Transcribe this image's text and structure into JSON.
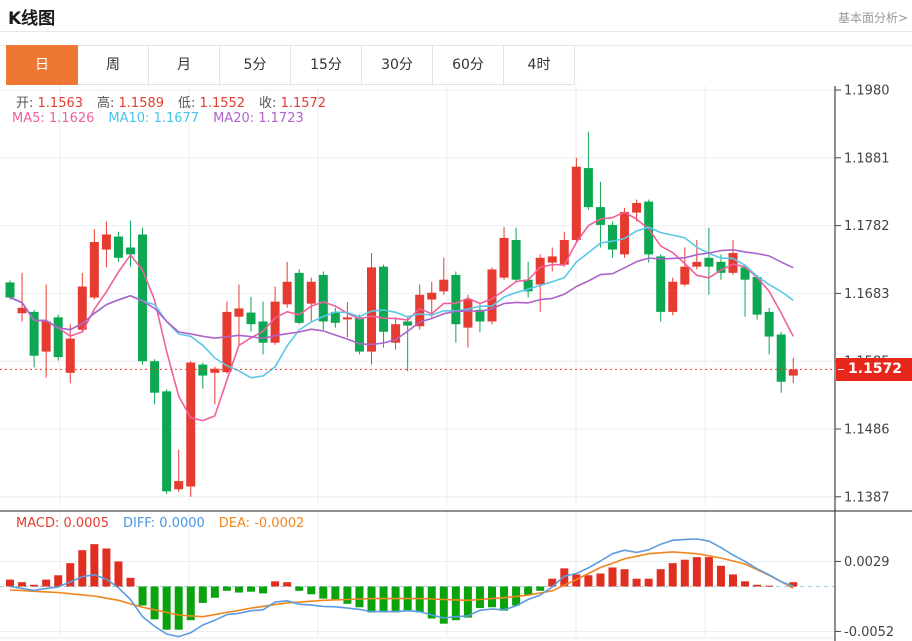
{
  "header": {
    "title": "K线图",
    "link": "基本面分析>"
  },
  "tabs": {
    "active_index": 0,
    "items": [
      "日",
      "周",
      "月",
      "5分",
      "15分",
      "30分",
      "60分",
      "4时"
    ]
  },
  "legend": {
    "ohlc": [
      {
        "label": "开:",
        "value": "1.1563"
      },
      {
        "label": "高:",
        "value": "1.1589"
      },
      {
        "label": "低:",
        "value": "1.1552"
      },
      {
        "label": "收:",
        "value": "1.1572"
      }
    ],
    "ma": [
      {
        "label": "MA5:",
        "value": "1.1626",
        "color": "#f0609e"
      },
      {
        "label": "MA10:",
        "value": "1.1677",
        "color": "#46c5e8"
      },
      {
        "label": "MA20:",
        "value": "1.1723",
        "color": "#b163c9"
      }
    ],
    "macd": [
      {
        "label": "MACD:",
        "value": "0.0005",
        "color": "#e63b30"
      },
      {
        "label": "DIFF:",
        "value": "0.0000",
        "color": "#4a95e0"
      },
      {
        "label": "DEA:",
        "value": "-0.0002",
        "color": "#f0861f"
      }
    ]
  },
  "price_axis": {
    "ticks": [
      "1.1980",
      "1.1881",
      "1.1782",
      "1.1683",
      "1.1585",
      "1.1486",
      "1.1387"
    ],
    "current": "1.1572"
  },
  "macd_axis": {
    "ticks": [
      "0.0029",
      "-0.0052"
    ]
  },
  "colors": {
    "up": "#e63b30",
    "down": "#0ca750",
    "macd_up": "#e02e20",
    "macd_down": "#0aa30e",
    "ma5": "#f0609e",
    "ma10": "#5ac8e6",
    "ma20": "#af63c9",
    "diff": "#5b9ce0",
    "dea": "#f0861f",
    "grid": "#e9eef5",
    "axis": "#444444",
    "zero_dash": "#9fd2e8",
    "current_line": "#ef3b30",
    "tag_bg": "#e8271c",
    "accent_tab": "#ee7734"
  },
  "chart_data": {
    "type": "candlestick",
    "title": "K线图 (日)",
    "xlabel": "",
    "ylabel": "",
    "y_axis": {
      "top_price": 1.198,
      "bottom_price": 1.1387,
      "step": 0.0099,
      "grid": true,
      "side": "right"
    },
    "current_price": 1.1572,
    "last_ohlc": {
      "open": 1.1563,
      "high": 1.1589,
      "low": 1.1552,
      "close": 1.1572
    },
    "ma_values": {
      "MA5": 1.1626,
      "MA10": 1.1677,
      "MA20": 1.1723
    },
    "candles_ohlc": [
      [
        1.1699,
        1.1702,
        1.1674,
        1.1677
      ],
      [
        1.1654,
        1.1713,
        1.1642,
        1.1662
      ],
      [
        1.1656,
        1.1659,
        1.1575,
        1.1592
      ],
      [
        1.1598,
        1.1696,
        1.156,
        1.1642
      ],
      [
        1.1648,
        1.1652,
        1.1585,
        1.159
      ],
      [
        1.1567,
        1.1638,
        1.1552,
        1.1617
      ],
      [
        1.163,
        1.1713,
        1.1627,
        1.1693
      ],
      [
        1.1677,
        1.1777,
        1.1674,
        1.1758
      ],
      [
        1.1747,
        1.1788,
        1.1721,
        1.1769
      ],
      [
        1.1766,
        1.1773,
        1.1729,
        1.1735
      ],
      [
        1.175,
        1.1789,
        1.1722,
        1.174
      ],
      [
        1.1769,
        1.1779,
        1.1579,
        1.1584
      ],
      [
        1.1584,
        1.1587,
        1.1521,
        1.1538
      ],
      [
        1.154,
        1.1543,
        1.139,
        1.1394
      ],
      [
        1.1397,
        1.1455,
        1.1393,
        1.1409
      ],
      [
        1.1401,
        1.1584,
        1.1386,
        1.1582
      ],
      [
        1.1579,
        1.1582,
        1.1544,
        1.1563
      ],
      [
        1.1567,
        1.1576,
        1.1521,
        1.1573
      ],
      [
        1.1568,
        1.1671,
        1.1566,
        1.1656
      ],
      [
        1.1649,
        1.1696,
        1.1608,
        1.1661
      ],
      [
        1.1655,
        1.1678,
        1.1627,
        1.1638
      ],
      [
        1.1642,
        1.1671,
        1.1594,
        1.1611
      ],
      [
        1.1611,
        1.1693,
        1.1608,
        1.1671
      ],
      [
        1.1667,
        1.1729,
        1.1662,
        1.17
      ],
      [
        1.1713,
        1.1718,
        1.1638,
        1.164
      ],
      [
        1.1668,
        1.1706,
        1.1642,
        1.17
      ],
      [
        1.171,
        1.1715,
        1.163,
        1.1642
      ],
      [
        1.1656,
        1.1662,
        1.1633,
        1.164
      ],
      [
        1.1645,
        1.167,
        1.1619,
        1.1648
      ],
      [
        1.1648,
        1.1652,
        1.1594,
        1.1598
      ],
      [
        1.1598,
        1.1742,
        1.1579,
        1.1721
      ],
      [
        1.1722,
        1.1725,
        1.1604,
        1.1627
      ],
      [
        1.1611,
        1.1648,
        1.1601,
        1.1638
      ],
      [
        1.1642,
        1.1648,
        1.1569,
        1.1636
      ],
      [
        1.1635,
        1.1696,
        1.163,
        1.1681
      ],
      [
        1.1674,
        1.17,
        1.1648,
        1.1684
      ],
      [
        1.1686,
        1.1735,
        1.1681,
        1.1703
      ],
      [
        1.171,
        1.1715,
        1.1611,
        1.1638
      ],
      [
        1.1633,
        1.1681,
        1.1604,
        1.1674
      ],
      [
        1.1659,
        1.1667,
        1.1626,
        1.1642
      ],
      [
        1.1642,
        1.1721,
        1.1638,
        1.1718
      ],
      [
        1.1706,
        1.178,
        1.1703,
        1.1764
      ],
      [
        1.1761,
        1.1779,
        1.1699,
        1.1703
      ],
      [
        1.1703,
        1.1729,
        1.1677,
        1.1686
      ],
      [
        1.1696,
        1.174,
        1.1656,
        1.1735
      ],
      [
        1.1728,
        1.175,
        1.1715,
        1.1737
      ],
      [
        1.1725,
        1.1773,
        1.1722,
        1.1761
      ],
      [
        1.1761,
        1.1881,
        1.1758,
        1.1868
      ],
      [
        1.1866,
        1.1919,
        1.1805,
        1.1809
      ],
      [
        1.1809,
        1.1846,
        1.175,
        1.1783
      ],
      [
        1.1783,
        1.1788,
        1.1735,
        1.1747
      ],
      [
        1.174,
        1.1808,
        1.1735,
        1.1802
      ],
      [
        1.1801,
        1.182,
        1.1788,
        1.1815
      ],
      [
        1.1817,
        1.182,
        1.1728,
        1.174
      ],
      [
        1.1737,
        1.174,
        1.1642,
        1.1656
      ],
      [
        1.1656,
        1.1706,
        1.1651,
        1.17
      ],
      [
        1.1696,
        1.175,
        1.1693,
        1.1722
      ],
      [
        1.1722,
        1.1761,
        1.1718,
        1.1729
      ],
      [
        1.1735,
        1.1779,
        1.1681,
        1.1722
      ],
      [
        1.1729,
        1.174,
        1.1703,
        1.1713
      ],
      [
        1.1713,
        1.1761,
        1.171,
        1.1742
      ],
      [
        1.1721,
        1.1725,
        1.1649,
        1.1703
      ],
      [
        1.1707,
        1.171,
        1.1645,
        1.1652
      ],
      [
        1.1656,
        1.1662,
        1.1594,
        1.162
      ],
      [
        1.1623,
        1.1627,
        1.1538,
        1.1554
      ],
      [
        1.1563,
        1.1589,
        1.1552,
        1.1572
      ]
    ],
    "ma_windows": [
      5,
      10,
      20
    ],
    "macd": {
      "readout": {
        "MACD": 0.0005,
        "DIFF": 0.0,
        "DEA": -0.0002
      },
      "y_ticks": [
        0.0029,
        -0.0052
      ],
      "histogram": [
        0.0008,
        0.0005,
        0.0002,
        0.0008,
        0.0013,
        0.0027,
        0.0042,
        0.0049,
        0.0044,
        0.0029,
        0.001,
        -0.0022,
        -0.0038,
        -0.005,
        -0.005,
        -0.0039,
        -0.0019,
        -0.0013,
        -0.0005,
        -0.0007,
        -0.0006,
        -0.0008,
        0.0006,
        0.0005,
        -0.0005,
        -0.0009,
        -0.0014,
        -0.0016,
        -0.002,
        -0.0024,
        -0.003,
        -0.003,
        -0.003,
        -0.0028,
        -0.003,
        -0.0037,
        -0.0043,
        -0.0039,
        -0.0036,
        -0.0025,
        -0.0024,
        -0.0028,
        -0.0022,
        -0.001,
        -0.0005,
        0.0009,
        0.0021,
        0.0014,
        0.0013,
        0.0015,
        0.0022,
        0.002,
        0.0009,
        0.0009,
        0.002,
        0.0027,
        0.0031,
        0.0034,
        0.0034,
        0.0024,
        0.0014,
        0.0006,
        0.0002,
        0.0001,
        0.0,
        0.0005
      ],
      "dea_points": [
        [
          0,
          -0.0004
        ],
        [
          4,
          -0.0007
        ],
        [
          7,
          -0.0011
        ],
        [
          9,
          -0.0016
        ],
        [
          11,
          -0.0024
        ],
        [
          14,
          -0.0033
        ],
        [
          16,
          -0.0035
        ],
        [
          18,
          -0.003
        ],
        [
          20,
          -0.0025
        ],
        [
          23,
          -0.0019
        ],
        [
          26,
          -0.0016
        ],
        [
          30,
          -0.0014
        ],
        [
          34,
          -0.0014
        ],
        [
          38,
          -0.0016
        ],
        [
          41,
          -0.0013
        ],
        [
          43,
          -0.001
        ],
        [
          45,
          -0.0005
        ],
        [
          47,
          0.0008
        ],
        [
          49,
          0.0022
        ],
        [
          51,
          0.0032
        ],
        [
          53,
          0.0038
        ],
        [
          55,
          0.004
        ],
        [
          57,
          0.0038
        ],
        [
          59,
          0.0033
        ],
        [
          61,
          0.0026
        ],
        [
          63,
          0.0013
        ],
        [
          65,
          -0.0002
        ]
      ]
    }
  }
}
